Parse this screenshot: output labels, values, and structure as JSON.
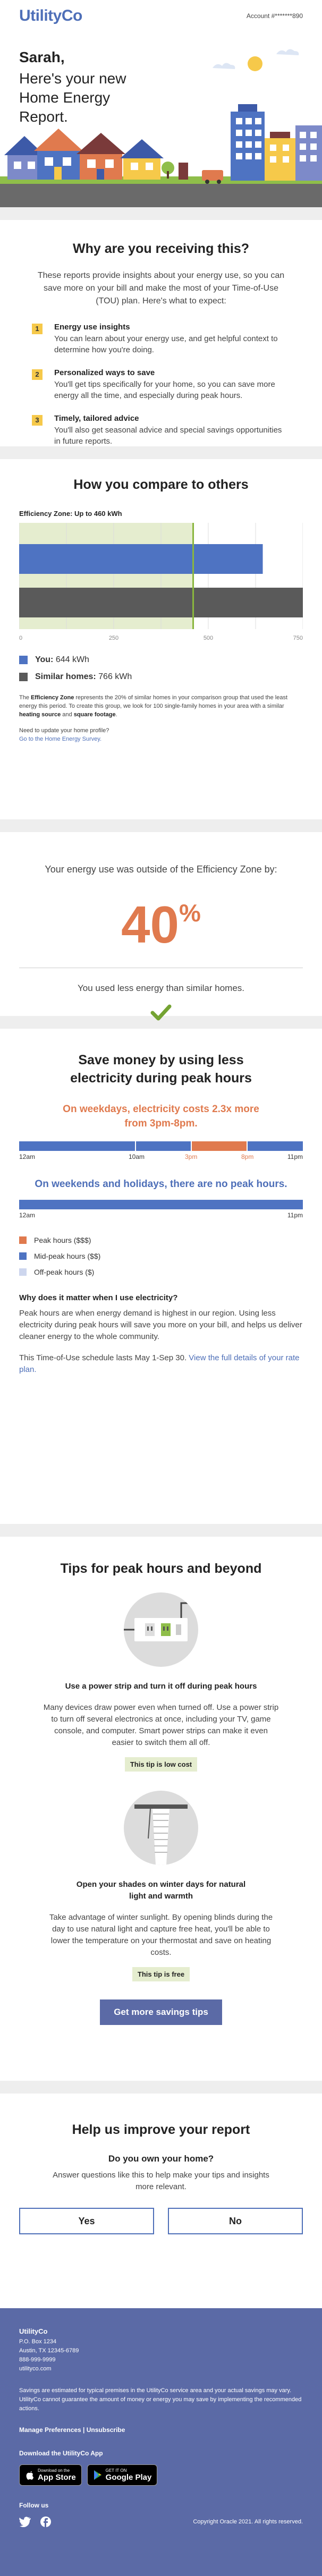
{
  "header": {
    "logo": "UtilityCo",
    "account": "Account #*******890",
    "greeting_name": "Sarah,",
    "greeting_text": "Here's your new Home Energy Report."
  },
  "why": {
    "title": "Why are you receiving this?",
    "intro": "These reports provide insights about your energy use, so you can save more on your bill and make the most of your Time-of-Use (TOU) plan. Here's what to expect:",
    "items": [
      {
        "num": "1",
        "head": "Energy use insights",
        "body": "You can learn about your energy use, and get helpful context to determine how you're doing."
      },
      {
        "num": "2",
        "head": "Personalized ways to save",
        "body": "You'll get tips specifically for your home, so you can save more energy all the time, and especially during peak hours."
      },
      {
        "num": "3",
        "head": "Timely, tailored advice",
        "body": "You'll also get seasonal advice and special savings opportunities in future reports."
      }
    ]
  },
  "compare": {
    "title": "How you compare to others",
    "zone_label": "Efficiency Zone: Up to 460 kWh",
    "you_label": "You:",
    "you_value": "644 kWh",
    "similar_label": "Similar homes:",
    "similar_value": "766 kWh",
    "note_bold1": "Efficiency Zone",
    "note_text1": " represents the 20% of similar homes in your comparison group that used the least energy this period. To create this group, we look for 100 single-family homes in your area with a similar ",
    "note_bold2": "heating source",
    "note_text2": " and ",
    "note_bold3": "square footage",
    "note_text3": ".",
    "update_q": "Need to update your home profile?",
    "update_link": "Go to the Home Energy Survey."
  },
  "chart_data": {
    "type": "bar",
    "orientation": "horizontal",
    "categories": [
      "You",
      "Similar homes"
    ],
    "values": [
      644,
      766
    ],
    "xlim": [
      0,
      750
    ],
    "xticks": [
      "0",
      "250",
      "500",
      "750"
    ],
    "zone_max": 460,
    "colors": {
      "you": "#4e73c2",
      "similar": "#5a5a5a",
      "zone": "#e5edcf",
      "zone_line": "#8ab63e"
    }
  },
  "zone": {
    "text1": "Your energy use was outside of the Efficiency Zone by:",
    "percent": "40",
    "percent_sign": "%",
    "text2": "You used less energy than similar homes."
  },
  "save": {
    "title": "Save money by using less electricity during peak hours",
    "weekday": "On weekdays, electricity costs 2.3x more from 3pm-8pm.",
    "weekend": "On weekends and holidays, there are no peak hours.",
    "labels": {
      "start": "12am",
      "a": "10am",
      "b": "3pm",
      "c": "8pm",
      "end": "11pm"
    },
    "legend": [
      {
        "label": "Peak hours ($$$)",
        "color": "#e07a4e"
      },
      {
        "label": "Mid-peak hours ($$)",
        "color": "#4e73c2"
      },
      {
        "label": "Off-peak hours ($)",
        "color": "#cdd6ee"
      }
    ],
    "why_head": "Why does it matter when I use electricity?",
    "why_body": "Peak hours are when energy demand is highest in our region. Using less electricity during peak hours will save you more on your bill, and helps us deliver cleaner energy to the whole community.",
    "schedule": "This Time-of-Use schedule lasts May 1-Sep 30. ",
    "schedule_link": "View the full details of your rate plan."
  },
  "tips": {
    "title": "Tips for peak hours and beyond",
    "items": [
      {
        "head": "Use a power strip and turn it off during peak hours",
        "body": "Many devices draw power even when turned off. Use a power strip to turn off several electronics at once, including your TV, game console, and computer. Smart power strips can make it even easier to switch them all off.",
        "badge": "This tip is low cost"
      },
      {
        "head": "Open your shades on winter days for natural light and warmth",
        "body": "Take advantage of winter sunlight. By opening blinds during the day to use natural light and capture free heat, you'll be able to lower the temperature on your thermostat and save on heating costs.",
        "badge": "This tip is free"
      }
    ],
    "cta": "Get more savings tips"
  },
  "improve": {
    "title": "Help us improve your report",
    "question": "Do you own your home?",
    "desc": "Answer questions like this to help make your tips and insights more relevant.",
    "yes": "Yes",
    "no": "No"
  },
  "footer": {
    "company": "UtilityCo",
    "address": [
      "P.O. Box 1234",
      "Austin, TX 12345-6789",
      "888-999-9999",
      "utilityco.com"
    ],
    "disclaimer": "Savings are estimated for typical premises in the UtilityCo service area and your actual savings may vary. UtilityCo cannot guarantee the amount of money or energy you may save by implementing the recommended actions.",
    "links": "Manage Preferences | Unsubscribe",
    "download": "Download the UtilityCo App",
    "appstore_small": "Download on the",
    "appstore": "App Store",
    "google_small": "GET IT ON",
    "google": "Google Play",
    "follow": "Follow us",
    "copyright": "Copyright Oracle 2021. All rights reserved."
  }
}
